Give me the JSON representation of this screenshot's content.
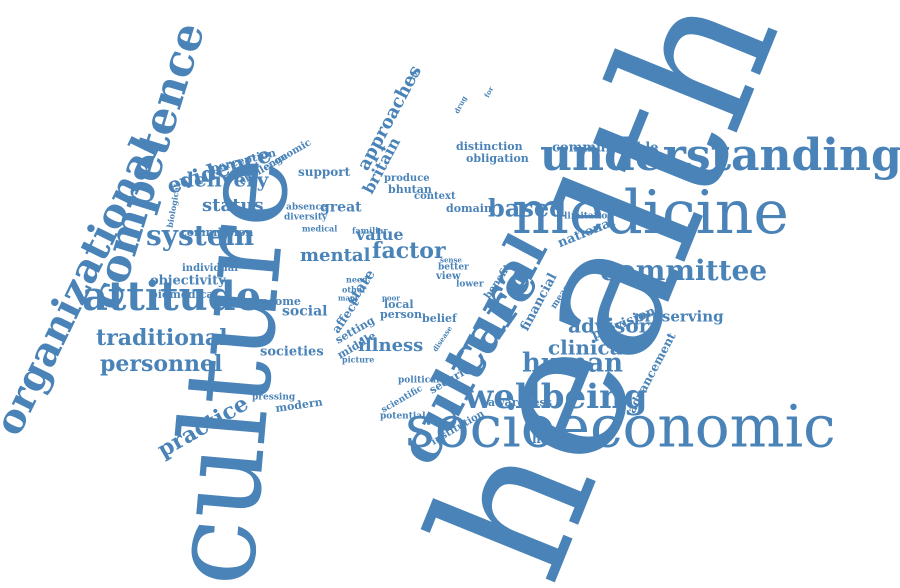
{
  "colors": {
    "word": "#4a83b8",
    "background": "#ffffff"
  },
  "words": {
    "health": "health",
    "culture": "culture",
    "socioeconomic": "socioeconomic",
    "medicine": "medicine",
    "understanding": "understanding",
    "cultural": "cultural",
    "organizational": "organizational",
    "competence": "competence",
    "attitude": "attitude",
    "care": "care",
    "wellbeing": "wellbeing",
    "committee": "committee",
    "system": "system",
    "human": "human",
    "traditional": "traditional",
    "personnel": "personnel",
    "evidence": "evidence",
    "delivery": "delivery",
    "practice": "practice",
    "clinical": "clinical",
    "advisory": "advisory",
    "based": "based",
    "factor": "factor",
    "mental": "mental",
    "status": "status",
    "approaches": "approaches",
    "britain": "britain",
    "illness": "illness",
    "preserving": "preserving",
    "national": "national",
    "value": "value",
    "provision": "provision",
    "advancement": "advancement",
    "communicable": "communicable",
    "happiness": "happiness",
    "objectivity": "objectivity",
    "biomedical": "biomedical",
    "social": "social",
    "societies": "societies",
    "income": "income",
    "great": "great",
    "support": "support",
    "perception": "perception",
    "challenge": "challenge",
    "economic": "economic",
    "distinction": "distinction",
    "obligation": "obligation",
    "produce": "produce",
    "bhutan": "bhutan",
    "context": "context",
    "domain": "domain",
    "commission": "commission",
    "individual": "individual",
    "absence": "absence",
    "diversity": "diversity",
    "medical": "medical",
    "familiar": "familiar",
    "need": "need",
    "state": "state",
    "affect": "affect",
    "setting": "setting",
    "middle": "middle",
    "picture": "picture",
    "many": "many",
    "other": "other",
    "local": "local",
    "person": "person",
    "belief": "belief",
    "better": "better",
    "view": "view",
    "lower": "lower",
    "financial": "financial",
    "benefit": "benefit",
    "measure": "measure",
    "limitation": "limitation",
    "security": "security",
    "political": "political",
    "scientific": "scientific",
    "potential": "potential",
    "institution": "institution",
    "awareness": "awareness",
    "pressing": "pressing",
    "modern": "modern",
    "biological": "biological",
    "disease": "disease",
    "drug": "drug",
    "sense": "sense",
    "poor": "poor",
    "for": "for",
    "dis": "dis"
  }
}
